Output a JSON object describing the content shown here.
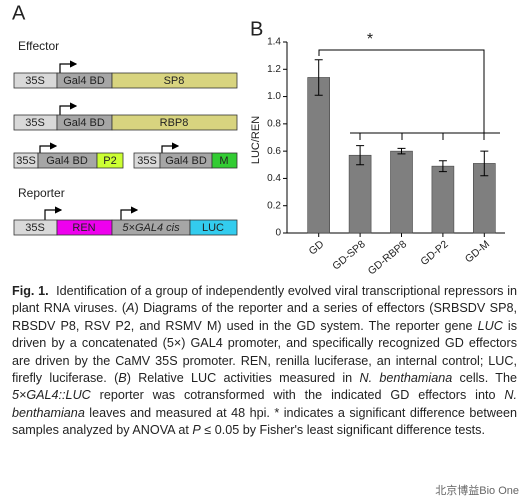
{
  "panel_a": {
    "label": "A",
    "effector_heading": "Effector",
    "reporter_heading": "Reporter",
    "promoter": "35S",
    "binding_domain": "Gal4 BD",
    "effectors": [
      "SP8",
      "RBP8",
      "P2",
      "M"
    ],
    "reporter_parts": [
      "REN",
      "5×GAL4 cis",
      "LUC"
    ]
  },
  "chart_data": {
    "type": "bar",
    "panel_label": "B",
    "y_label": "LUC/REN",
    "annotation": "*",
    "categories": [
      "GD",
      "GD-SP8",
      "GD-RBP8",
      "GD-P2",
      "GD-M"
    ],
    "values": [
      1.14,
      0.57,
      0.6,
      0.49,
      0.51
    ],
    "errors": [
      0.13,
      0.07,
      0.02,
      0.04,
      0.09
    ],
    "color": "#7f7f7f",
    "ylim": [
      0,
      1.4
    ],
    "yticks": [
      0,
      0.2,
      0.4,
      0.6,
      0.8,
      {
        "value": 1,
        "label": "1.0"
      },
      1.2,
      1.4
    ]
  },
  "caption": [
    "Fig. 1.",
    "Identification of a group of independently evolved viral transcriptional repressors in plant RNA viruses. (",
    "A",
    ") Diagrams of the reporter and a series of effectors (SRBSDV SP8, RBSDV P8, RSV P2, and RSMV M) used in the GD system. The reporter gene ",
    "LUC",
    " is driven by a concatenated (5×) GAL4 promoter, and specifically recognized GD effectors are driven by the CaMV 35S promoter. REN, renilla luciferase, an internal control; LUC, firefly luciferase. (",
    "B",
    ") Relative LUC activities measured in ",
    "N. benthamiana",
    " cells. The ",
    "5×GAL4::LUC",
    " reporter was cotransformed with the indicated GD effectors into ",
    "N. benthamiana",
    " leaves and measured at 48 hpi. * indicates a significant difference between samples analyzed by ANOVA at ",
    "P",
    " ≤ 0.05 by Fisher's least significant difference tests."
  ],
  "watermark": "北京博益Bio One"
}
